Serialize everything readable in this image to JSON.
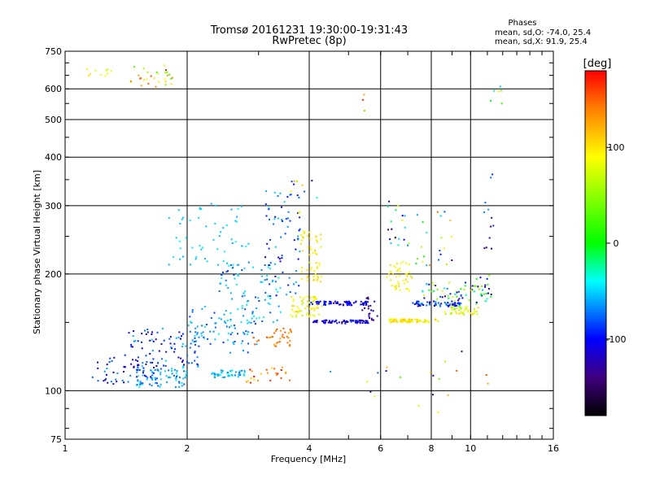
{
  "chart_data": {
    "type": "scatter",
    "title": "Tromsø 20161231 19:30:00-19:31:43",
    "subtitle": "RwPretec (8p)",
    "xlabel": "Frequency [MHz]",
    "ylabel": "Stationary phase Virtual Height [km]",
    "x_scale": "log",
    "y_scale": "log",
    "xlim": [
      1,
      16
    ],
    "ylim": [
      75,
      750
    ],
    "x_ticks": [
      1,
      2,
      4,
      6,
      8,
      10,
      16
    ],
    "y_ticks": [
      75,
      100,
      200,
      300,
      400,
      500,
      600,
      750
    ],
    "grid": true,
    "stats": {
      "heading": "Phases",
      "line_o": "mean, sd,O: -74.0, 25.4",
      "line_x": "mean, sd,X:  91.9, 25.4"
    },
    "colorbar": {
      "unit": "[deg]",
      "range": [
        -180,
        180
      ],
      "ticks": [
        100,
        0,
        -100
      ],
      "colors": [
        "#ff0000",
        "#ff8000",
        "#ffff00",
        "#00ff00",
        "#00ffff",
        "#0000ff",
        "#400080",
        "#000000"
      ]
    },
    "clusters": [
      {
        "f": [
          1.1,
          1.3
        ],
        "h": [
          640,
          680
        ],
        "p": [
          60,
          110
        ],
        "n": 10
      },
      {
        "f": [
          1.45,
          1.85
        ],
        "h": [
          600,
          690
        ],
        "p": [
          20,
          180
        ],
        "n": 30
      },
      {
        "f": [
          11.2,
          12.3
        ],
        "h": [
          540,
          620
        ],
        "p": [
          -130,
          120
        ],
        "n": 6
      },
      {
        "f": [
          5.4,
          5.6
        ],
        "h": [
          500,
          620
        ],
        "p": [
          100,
          170
        ],
        "n": 3
      },
      {
        "f": [
          1.15,
          1.7
        ],
        "h": [
          104,
          122
        ],
        "p": [
          -140,
          -60
        ],
        "n": 55
      },
      {
        "f": [
          1.5,
          2.0
        ],
        "h": [
          102,
          115
        ],
        "p": [
          -80,
          -40
        ],
        "n": 75
      },
      {
        "f": [
          1.4,
          2.2
        ],
        "h": [
          115,
          145
        ],
        "p": [
          -130,
          -50
        ],
        "n": 90
      },
      {
        "f": [
          2.0,
          3.0
        ],
        "h": [
          125,
          165
        ],
        "p": [
          -90,
          -40
        ],
        "n": 80
      },
      {
        "f": [
          2.3,
          2.8
        ],
        "h": [
          108,
          113
        ],
        "p": [
          -70,
          -40
        ],
        "n": 45
      },
      {
        "f": [
          2.4,
          3.4
        ],
        "h": [
          150,
          215
        ],
        "p": [
          -90,
          -30
        ],
        "n": 80
      },
      {
        "f": [
          1.8,
          2.9
        ],
        "h": [
          210,
          305
        ],
        "p": [
          -60,
          -40
        ],
        "n": 55
      },
      {
        "f": [
          3.1,
          3.8
        ],
        "h": [
          175,
          330
        ],
        "p": [
          -110,
          -40
        ],
        "n": 70
      },
      {
        "f": [
          2.9,
          3.7
        ],
        "h": [
          130,
          145
        ],
        "p": [
          120,
          160
        ],
        "n": 35
      },
      {
        "f": [
          2.8,
          3.6
        ],
        "h": [
          104,
          115
        ],
        "p": [
          100,
          180
        ],
        "n": 25
      },
      {
        "f": [
          3.6,
          4.3
        ],
        "h": [
          155,
          175
        ],
        "p": [
          70,
          110
        ],
        "n": 60
      },
      {
        "f": [
          3.8,
          4.3
        ],
        "h": [
          190,
          260
        ],
        "p": [
          80,
          110
        ],
        "n": 55
      },
      {
        "f": [
          3.6,
          4.2
        ],
        "h": [
          270,
          350
        ],
        "p": [
          -120,
          130
        ],
        "n": 12
      },
      {
        "f": [
          4.0,
          5.6
        ],
        "h": [
          149,
          152
        ],
        "p": [
          -130,
          -90
        ],
        "n": 80
      },
      {
        "f": [
          4.0,
          5.6
        ],
        "h": [
          166,
          170
        ],
        "p": [
          -120,
          -90
        ],
        "n": 70
      },
      {
        "f": [
          5.4,
          5.9
        ],
        "h": [
          152,
          175
        ],
        "p": [
          -150,
          -100
        ],
        "n": 20
      },
      {
        "f": [
          6.2,
          7.2
        ],
        "h": [
          180,
          215
        ],
        "p": [
          70,
          110
        ],
        "n": 45
      },
      {
        "f": [
          6.3,
          7.2
        ],
        "h": [
          150,
          153
        ],
        "p": [
          80,
          110
        ],
        "n": 50
      },
      {
        "f": [
          6.8,
          8.4
        ],
        "h": [
          150,
          153
        ],
        "p": [
          70,
          120
        ],
        "n": 40
      },
      {
        "f": [
          7.2,
          9.5
        ],
        "h": [
          165,
          170
        ],
        "p": [
          -130,
          -60
        ],
        "n": 60
      },
      {
        "f": [
          7.5,
          10.3
        ],
        "h": [
          170,
          190
        ],
        "p": [
          -140,
          90
        ],
        "n": 50
      },
      {
        "f": [
          8.6,
          10.5
        ],
        "h": [
          157,
          165
        ],
        "p": [
          40,
          110
        ],
        "n": 40
      },
      {
        "f": [
          10.3,
          11.3
        ],
        "h": [
          165,
          200
        ],
        "p": [
          -150,
          60
        ],
        "n": 25
      },
      {
        "f": [
          6.2,
          7.1
        ],
        "h": [
          230,
          310
        ],
        "p": [
          -160,
          110
        ],
        "n": 20
      },
      {
        "f": [
          7.3,
          9.0
        ],
        "h": [
          210,
          290
        ],
        "p": [
          -140,
          170
        ],
        "n": 22
      },
      {
        "f": [
          10.8,
          11.4
        ],
        "h": [
          230,
          370
        ],
        "p": [
          -150,
          -60
        ],
        "n": 12
      },
      {
        "f": [
          4.5,
          11.5
        ],
        "h": [
          85,
          130
        ],
        "p": [
          -150,
          180
        ],
        "n": 20
      }
    ]
  }
}
